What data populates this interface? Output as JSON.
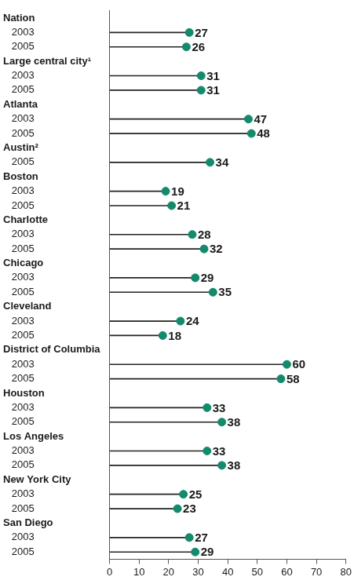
{
  "chart_data": {
    "type": "lollipop",
    "orientation": "horizontal",
    "categories": [
      "Nation",
      "2003",
      "2005",
      "Large central city¹",
      "2003",
      "2005",
      "Atlanta",
      "2003",
      "2005",
      "Austin²",
      "2005",
      "Boston",
      "2003",
      "2005",
      "Charlotte",
      "2003",
      "2005",
      "Chicago",
      "2003",
      "2005",
      "Cleveland",
      "2003",
      "2005",
      "District of Columbia",
      "2003",
      "2005",
      "Houston",
      "2003",
      "2005",
      "Los Angeles",
      "2003",
      "2005",
      "New York City",
      "2003",
      "2005",
      "San Diego",
      "2003",
      "2005"
    ],
    "values": [
      null,
      27,
      26,
      null,
      31,
      31,
      null,
      47,
      48,
      null,
      34,
      null,
      19,
      21,
      null,
      28,
      32,
      null,
      29,
      35,
      null,
      24,
      18,
      null,
      60,
      58,
      null,
      33,
      38,
      null,
      33,
      38,
      null,
      25,
      23,
      null,
      27,
      29
    ],
    "color": "#138a6b",
    "xlim": [
      0,
      80
    ],
    "xticks": [
      0,
      10,
      20,
      30,
      40,
      50,
      60,
      70,
      80
    ],
    "grid": false,
    "data_labels": true
  }
}
